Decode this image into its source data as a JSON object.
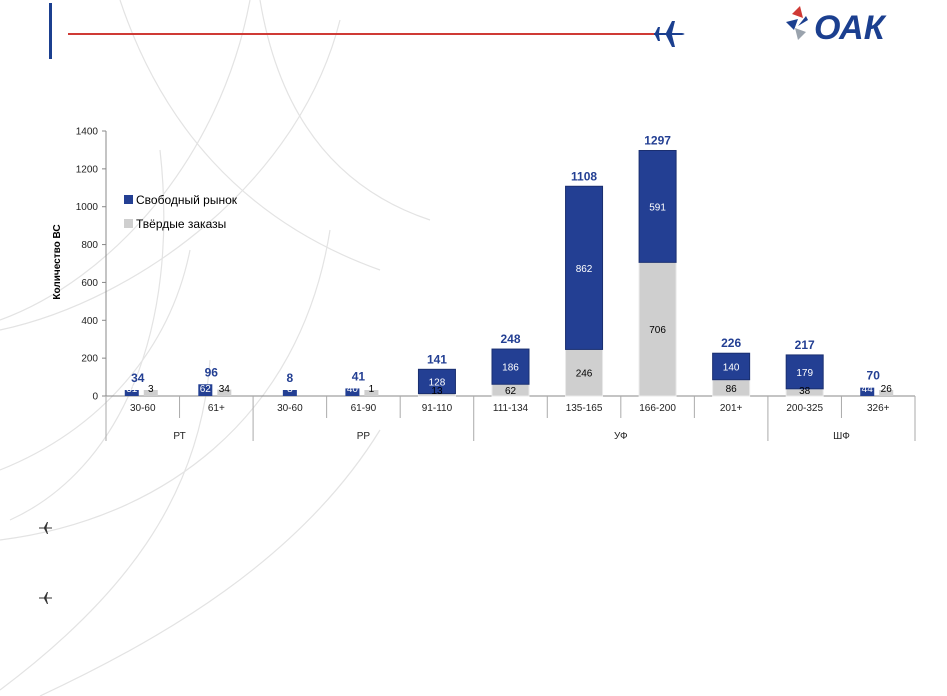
{
  "logo": {
    "text": "ОАК"
  },
  "colors": {
    "free_market": "#233f93",
    "firm_orders": "#cfcfcf",
    "header_line": "#cf3a35",
    "accent_blue": "#1b3f8f"
  },
  "icons": [
    "plane-icon",
    "star-logo-icon",
    "bullet-plane-icon"
  ],
  "chart_data": {
    "type": "bar",
    "stacked": true,
    "ylabel": "Количество ВС",
    "ylim": [
      0,
      1400
    ],
    "yticks": [
      "0",
      "200",
      "400",
      "600",
      "800",
      "1000",
      "1200",
      "1400"
    ],
    "grid": false,
    "legend_position": "left",
    "categories": [
      "30-60",
      "61+",
      "30-60",
      "61-90",
      "91-110",
      "111-134",
      "135-165",
      "166-200",
      "201+",
      "200-325",
      "326+"
    ],
    "groups": [
      {
        "label": "РТ",
        "categories": [
          "30-60",
          "61+"
        ]
      },
      {
        "label": "РР",
        "categories": [
          "30-60",
          "61-90",
          "91-110"
        ]
      },
      {
        "label": "УФ",
        "categories": [
          "111-134",
          "135-165",
          "166-200",
          "201+"
        ]
      },
      {
        "label": "ШФ",
        "categories": [
          "200-325",
          "326+"
        ]
      }
    ],
    "series": [
      {
        "name": "Твёрдые заказы",
        "values": [
          3,
          34,
          0,
          1,
          13,
          62,
          246,
          706,
          86,
          38,
          26
        ]
      },
      {
        "name": "Свободный рынок",
        "values": [
          31,
          62,
          8,
          40,
          128,
          186,
          862,
          591,
          140,
          179,
          44
        ]
      }
    ],
    "totals": [
      34,
      96,
      8,
      41,
      141,
      248,
      1108,
      1297,
      226,
      217,
      70
    ]
  }
}
